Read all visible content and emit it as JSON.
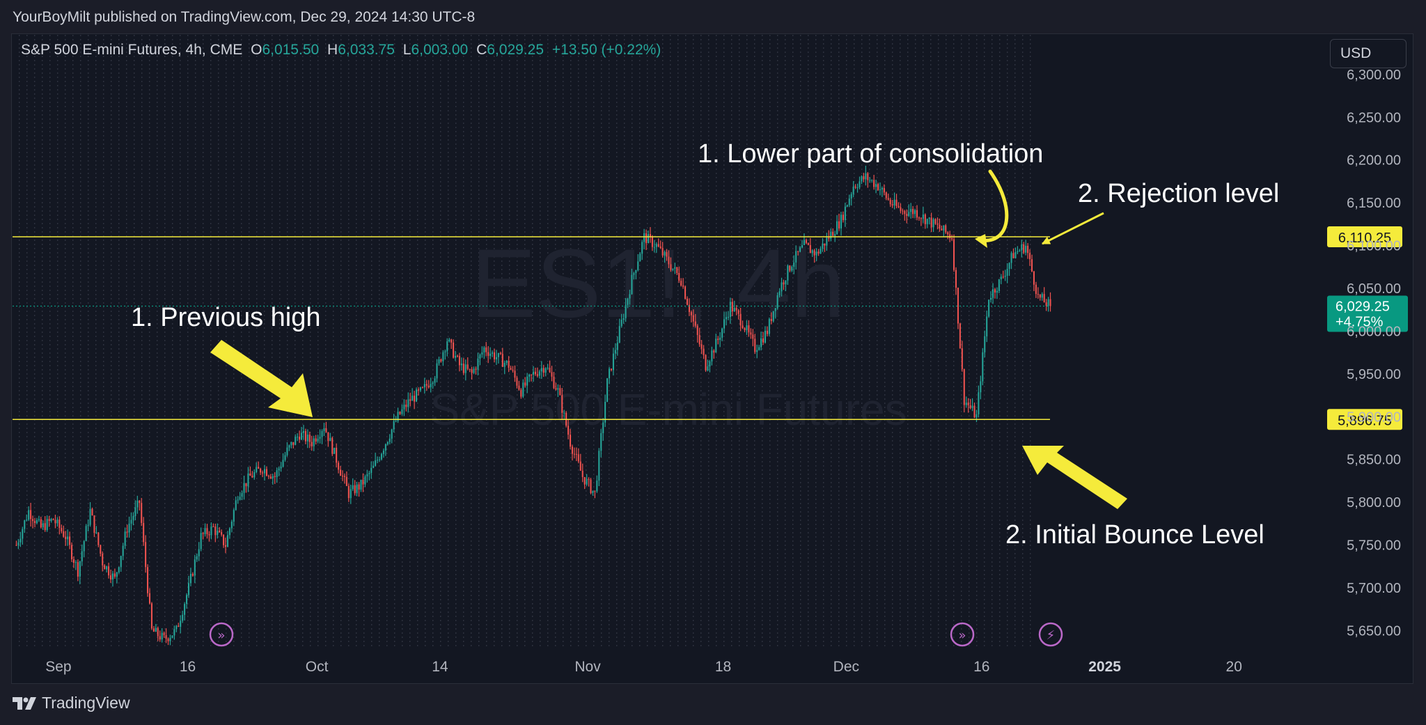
{
  "publisher": "YourBoyMilt published on TradingView.com, Dec 29, 2024 14:30 UTC-8",
  "legend": {
    "symbol": "S&P 500 E-mini Futures, 4h, CME",
    "open_label": "O",
    "open": "6,015.50",
    "high_label": "H",
    "high": "6,033.75",
    "low_label": "L",
    "low": "6,003.00",
    "close_label": "C",
    "close": "6,029.25",
    "change": "+13.50 (+0.22%)"
  },
  "currency": "USD",
  "watermark": {
    "ticker": "ES1!, 4h",
    "name": "S&P 500 E-mini Futures"
  },
  "footer": {
    "brand": "TradingView"
  },
  "colors": {
    "up": "#26a69a",
    "down": "#ef5350",
    "level": "#f5eb3b",
    "annotation": "#f5eb3b",
    "price_tag": "#089981"
  },
  "chart_data": {
    "type": "candlestick",
    "timeframe": "4h",
    "ylim": [
      5630,
      6330
    ],
    "y_ticks": [
      "6,300.00",
      "6,250.00",
      "6,200.00",
      "6,150.00",
      "6,100.00",
      "6,050.00",
      "6,000.00",
      "5,950.00",
      "5,900.00",
      "5,850.00",
      "5,800.00",
      "5,750.00",
      "5,700.00",
      "5,650.00"
    ],
    "y_tick_values": [
      6300,
      6250,
      6200,
      6150,
      6100,
      6050,
      6000,
      5950,
      5900,
      5850,
      5800,
      5750,
      5700,
      5650
    ],
    "x_ticks": [
      "Sep",
      "16",
      "Oct",
      "14",
      "Nov",
      "18",
      "Dec",
      "16",
      "2025",
      "20"
    ],
    "x_tick_index": [
      3.5,
      14,
      24.5,
      34.5,
      46.5,
      57.5,
      67.5,
      78.5,
      88.5,
      99
    ],
    "levels": [
      {
        "label": "6,110.25",
        "value": 6110.25
      },
      {
        "label": "5,896.75",
        "value": 5896.75
      }
    ],
    "last_price": {
      "price": "6,029.25",
      "change_pct": "+4.75%",
      "value": 6029.25
    },
    "annotations": [
      "1. Lower part of consolidation",
      "2. Rejection level",
      "1. Previous high",
      "2. Initial Bounce Level"
    ],
    "event_markers": [
      "dividend",
      "dividend",
      "earnings"
    ],
    "closes": [
      5750,
      5790,
      5770,
      5780,
      5760,
      5720,
      5790,
      5730,
      5710,
      5770,
      5800,
      5650,
      5640,
      5650,
      5700,
      5760,
      5770,
      5750,
      5810,
      5830,
      5840,
      5830,
      5860,
      5880,
      5870,
      5890,
      5850,
      5810,
      5820,
      5840,
      5870,
      5900,
      5920,
      5930,
      5950,
      5990,
      5960,
      5950,
      5980,
      5970,
      5960,
      5930,
      5950,
      5960,
      5930,
      5870,
      5830,
      5810,
      5940,
      6000,
      6060,
      6110,
      6100,
      6080,
      6060,
      6010,
      5960,
      5990,
      6030,
      6010,
      5980,
      6000,
      6050,
      6080,
      6100,
      6090,
      6110,
      6130,
      6170,
      6180,
      6170,
      6150,
      6140,
      6140,
      6130,
      6120,
      6110,
      5920,
      5900,
      6040,
      6060,
      6090,
      6100,
      6040,
      6029.25
    ]
  }
}
